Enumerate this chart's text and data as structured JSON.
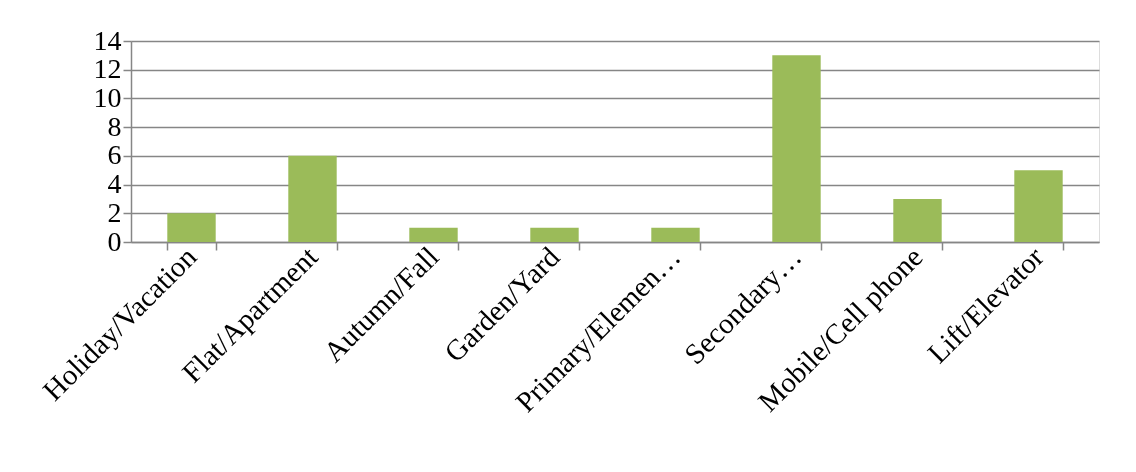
{
  "chart_data": {
    "type": "bar",
    "categories": [
      "Holiday/Vacation",
      "Flat/Apartment",
      "Autumn/Fall",
      "Garden/Yard",
      "Primary/Elemen…",
      "Secondary…",
      "Mobile/Cell phone",
      "Lift/Elevator"
    ],
    "values": [
      2,
      6,
      1,
      1,
      1,
      13,
      3,
      5
    ],
    "color": "#9bbb59",
    "ylim": [
      0,
      14
    ],
    "yticks": [
      0,
      2,
      4,
      6,
      8,
      10,
      12,
      14
    ],
    "grid": "y"
  }
}
